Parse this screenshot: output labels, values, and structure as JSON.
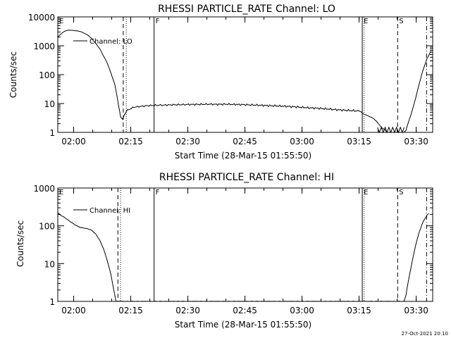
{
  "chart_data": [
    {
      "type": "line",
      "title": "RHESSI PARTICLE_RATE Channel: LO",
      "xlabel": "Start Time (28-Mar-15 01:55:50)",
      "ylabel": "Counts/sec",
      "yscale": "log",
      "ylim": [
        1,
        10000
      ],
      "xlim_minutes_from_start": [
        0,
        98.5
      ],
      "xticks": [
        {
          "label": "02:00",
          "t": 4.17
        },
        {
          "label": "02:15",
          "t": 19.17
        },
        {
          "label": "02:30",
          "t": 34.17
        },
        {
          "label": "02:45",
          "t": 49.17
        },
        {
          "label": "03:00",
          "t": 64.17
        },
        {
          "label": "03:15",
          "t": 79.17
        },
        {
          "label": "03:30",
          "t": 94.17
        }
      ],
      "yticks": [
        {
          "label": "1",
          "v": 1
        },
        {
          "label": "10",
          "v": 10
        },
        {
          "label": "100",
          "v": 100
        },
        {
          "label": "1000",
          "v": 1000
        },
        {
          "label": "10000",
          "v": 10000
        }
      ],
      "legend": "Channel: LO",
      "series": [
        {
          "name": "Channel: LO",
          "points": [
            [
              0,
              2000
            ],
            [
              1,
              2700
            ],
            [
              2,
              3300
            ],
            [
              3,
              3500
            ],
            [
              4,
              3400
            ],
            [
              5,
              3300
            ],
            [
              6,
              3100
            ],
            [
              7,
              2700
            ],
            [
              8,
              2300
            ],
            [
              9,
              1700
            ],
            [
              10,
              1200
            ],
            [
              11,
              800
            ],
            [
              12,
              450
            ],
            [
              13,
              250
            ],
            [
              14,
              110
            ],
            [
              15,
              45
            ],
            [
              15.5,
              20
            ],
            [
              16,
              8
            ],
            [
              16.5,
              3.5
            ],
            [
              17,
              2.8
            ],
            [
              17.5,
              4
            ],
            [
              18,
              5.5
            ],
            [
              19,
              6.5
            ],
            [
              20,
              7.5
            ],
            [
              22,
              8
            ],
            [
              24,
              8.5
            ],
            [
              26,
              8.7
            ],
            [
              28,
              8.8
            ],
            [
              30,
              9
            ],
            [
              32,
              9.1
            ],
            [
              34,
              9.2
            ],
            [
              36,
              9.3
            ],
            [
              38,
              9.4
            ],
            [
              40,
              9.5
            ],
            [
              42,
              9.3
            ],
            [
              44,
              9.5
            ],
            [
              46,
              9.3
            ],
            [
              48,
              9.2
            ],
            [
              50,
              9.0
            ],
            [
              52,
              8.8
            ],
            [
              54,
              8.6
            ],
            [
              56,
              8.4
            ],
            [
              58,
              8.2
            ],
            [
              60,
              8.0
            ],
            [
              62,
              7.7
            ],
            [
              64,
              7.4
            ],
            [
              66,
              7.1
            ],
            [
              68,
              6.9
            ],
            [
              70,
              6.6
            ],
            [
              72,
              6.3
            ],
            [
              74,
              6.0
            ],
            [
              76,
              5.8
            ],
            [
              78,
              5.6
            ],
            [
              79.5,
              5.5
            ],
            [
              80,
              4.5
            ],
            [
              81,
              4.0
            ],
            [
              82,
              3.5
            ],
            [
              83,
              3.0
            ],
            [
              84,
              2.2
            ],
            [
              85,
              1.5
            ],
            [
              86,
              1.2
            ],
            [
              86.5,
              1
            ],
            [
              91,
              1
            ],
            [
              91.5,
              1.2
            ],
            [
              92,
              2
            ],
            [
              93,
              5
            ],
            [
              94,
              15
            ],
            [
              95,
              50
            ],
            [
              96,
              150
            ],
            [
              97,
              350
            ],
            [
              98,
              650
            ]
          ]
        }
      ],
      "markers": [
        {
          "label": "E",
          "t": 0,
          "style": "solid"
        },
        {
          "t": 17.2,
          "style": "dashed"
        },
        {
          "t": 18.0,
          "style": "dotted"
        },
        {
          "label": "F",
          "t": 25.3,
          "style": "solid"
        },
        {
          "label": "E",
          "t": 80.0,
          "style": "solid"
        },
        {
          "t": 80.5,
          "style": "dotted"
        },
        {
          "label": "S",
          "t": 89.3,
          "style": "dashed"
        },
        {
          "t": 96.9,
          "style": "dashdot"
        }
      ]
    },
    {
      "type": "line",
      "title": "RHESSI PARTICLE_RATE Channel: HI",
      "xlabel": "Start Time (28-Mar-15 01:55:50)",
      "ylabel": "Counts/sec",
      "yscale": "log",
      "ylim": [
        1,
        1000
      ],
      "xlim_minutes_from_start": [
        0,
        98.5
      ],
      "xticks": [
        {
          "label": "02:00",
          "t": 4.17
        },
        {
          "label": "02:15",
          "t": 19.17
        },
        {
          "label": "02:30",
          "t": 34.17
        },
        {
          "label": "02:45",
          "t": 49.17
        },
        {
          "label": "03:00",
          "t": 64.17
        },
        {
          "label": "03:15",
          "t": 79.17
        },
        {
          "label": "03:30",
          "t": 94.17
        }
      ],
      "yticks": [
        {
          "label": "1",
          "v": 1
        },
        {
          "label": "10",
          "v": 10
        },
        {
          "label": "100",
          "v": 100
        },
        {
          "label": "1000",
          "v": 1000
        }
      ],
      "legend": "Channel: HI",
      "series": [
        {
          "name": "Channel: HI",
          "points": [
            [
              0,
              220
            ],
            [
              1,
              185
            ],
            [
              2,
              160
            ],
            [
              3,
              135
            ],
            [
              4,
              115
            ],
            [
              5,
              100
            ],
            [
              6,
              90
            ],
            [
              7,
              87
            ],
            [
              8,
              83
            ],
            [
              9,
              75
            ],
            [
              10,
              60
            ],
            [
              11,
              42
            ],
            [
              12,
              25
            ],
            [
              13,
              12
            ],
            [
              14,
              5
            ],
            [
              14.7,
              2
            ],
            [
              15.3,
              1
            ],
            [
              91,
              1
            ],
            [
              91.5,
              1.5
            ],
            [
              92,
              3
            ],
            [
              93,
              10
            ],
            [
              94,
              30
            ],
            [
              95,
              70
            ],
            [
              96,
              130
            ],
            [
              97,
              190
            ],
            [
              97.5,
              210
            ]
          ]
        }
      ],
      "markers": [
        {
          "label": "E",
          "t": 0,
          "style": "solid"
        },
        {
          "t": 15.8,
          "style": "dashed"
        },
        {
          "t": 16.5,
          "style": "dotted"
        },
        {
          "label": "F",
          "t": 25.3,
          "style": "solid"
        },
        {
          "label": "E",
          "t": 80.0,
          "style": "solid"
        },
        {
          "t": 80.5,
          "style": "dotted"
        },
        {
          "label": "S",
          "t": 89.3,
          "style": "dashed"
        },
        {
          "t": 96.9,
          "style": "dashdot"
        }
      ]
    }
  ],
  "footer_stamp": "27-Oct-2021 20:10"
}
